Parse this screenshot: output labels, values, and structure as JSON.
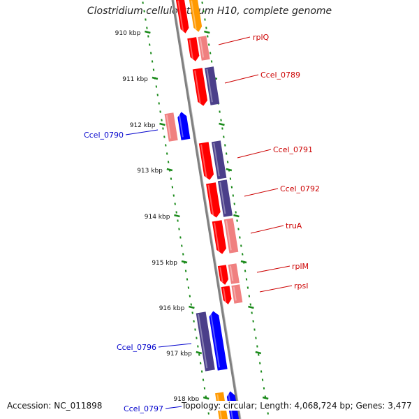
{
  "title": "Clostridium cellulolyticum H10, complete genome",
  "footer": {
    "accession": "Accession: NC_011898",
    "topology": "Topology: circular; Length: 4,068,724 bp; Genes: 3,477"
  },
  "colors": {
    "background": "#ffffff",
    "backbone": "#808080",
    "tick": "#1a8a1a",
    "red_label": "#cc0000",
    "blue_label": "#0000cc",
    "gene_red": "#ff0000",
    "gene_pink": "#f08080",
    "gene_blue": "#0000ff",
    "gene_navy": "#4b3f8a",
    "gene_orange": "#ff9900"
  },
  "ticks": [
    {
      "label": "910 kbp"
    },
    {
      "label": "911 kbp"
    },
    {
      "label": "912 kbp"
    },
    {
      "label": "913 kbp"
    },
    {
      "label": "914 kbp"
    },
    {
      "label": "915 kbp"
    },
    {
      "label": "916 kbp"
    },
    {
      "label": "917 kbp"
    },
    {
      "label": "918 kbp"
    }
  ],
  "gene_labels": [
    {
      "text": "rplQ",
      "color": "red"
    },
    {
      "text": "Ccel_0789",
      "color": "red"
    },
    {
      "text": "Ccel_0790",
      "color": "blue"
    },
    {
      "text": "Ccel_0791",
      "color": "red"
    },
    {
      "text": "Ccel_0792",
      "color": "red"
    },
    {
      "text": "truA",
      "color": "red"
    },
    {
      "text": "rplM",
      "color": "red"
    },
    {
      "text": "rpsI",
      "color": "red"
    },
    {
      "text": "Ccel_0796",
      "color": "blue"
    },
    {
      "text": "Ccel_0797",
      "color": "blue"
    }
  ]
}
